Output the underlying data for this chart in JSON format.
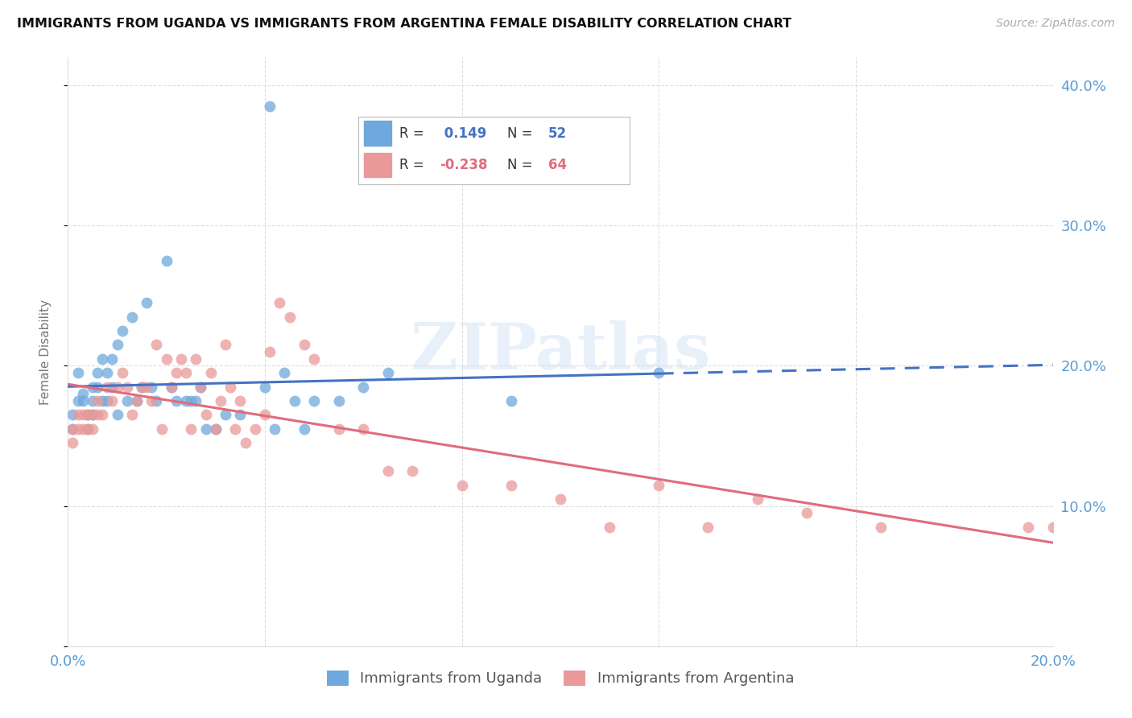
{
  "title": "IMMIGRANTS FROM UGANDA VS IMMIGRANTS FROM ARGENTINA FEMALE DISABILITY CORRELATION CHART",
  "source": "Source: ZipAtlas.com",
  "ylabel_label": "Female Disability",
  "xlim": [
    0.0,
    0.2
  ],
  "ylim": [
    0.0,
    0.42
  ],
  "uganda_color": "#6fa8dc",
  "argentina_color": "#ea9999",
  "uganda_line_color": "#4472c4",
  "argentina_line_color": "#e06c7e",
  "R_uganda": 0.149,
  "N_uganda": 52,
  "R_argentina": -0.238,
  "N_argentina": 64,
  "uganda_x": [
    0.001,
    0.001,
    0.002,
    0.002,
    0.003,
    0.003,
    0.004,
    0.004,
    0.005,
    0.005,
    0.005,
    0.006,
    0.006,
    0.007,
    0.007,
    0.008,
    0.008,
    0.009,
    0.009,
    0.01,
    0.01,
    0.011,
    0.012,
    0.013,
    0.014,
    0.015,
    0.016,
    0.017,
    0.018,
    0.02,
    0.021,
    0.022,
    0.024,
    0.025,
    0.026,
    0.027,
    0.028,
    0.03,
    0.032,
    0.035,
    0.04,
    0.041,
    0.042,
    0.044,
    0.046,
    0.048,
    0.05,
    0.055,
    0.06,
    0.065,
    0.09,
    0.12
  ],
  "uganda_y": [
    0.165,
    0.155,
    0.195,
    0.175,
    0.18,
    0.175,
    0.165,
    0.155,
    0.185,
    0.175,
    0.165,
    0.195,
    0.185,
    0.205,
    0.175,
    0.195,
    0.175,
    0.205,
    0.185,
    0.215,
    0.165,
    0.225,
    0.175,
    0.235,
    0.175,
    0.185,
    0.245,
    0.185,
    0.175,
    0.275,
    0.185,
    0.175,
    0.175,
    0.175,
    0.175,
    0.185,
    0.155,
    0.155,
    0.165,
    0.165,
    0.185,
    0.385,
    0.155,
    0.195,
    0.175,
    0.155,
    0.175,
    0.175,
    0.185,
    0.195,
    0.175,
    0.195
  ],
  "argentina_x": [
    0.001,
    0.001,
    0.002,
    0.002,
    0.003,
    0.003,
    0.004,
    0.004,
    0.005,
    0.005,
    0.006,
    0.006,
    0.007,
    0.008,
    0.009,
    0.01,
    0.011,
    0.012,
    0.013,
    0.014,
    0.015,
    0.016,
    0.017,
    0.018,
    0.019,
    0.02,
    0.021,
    0.022,
    0.023,
    0.024,
    0.025,
    0.026,
    0.027,
    0.028,
    0.029,
    0.03,
    0.031,
    0.032,
    0.033,
    0.034,
    0.035,
    0.036,
    0.038,
    0.04,
    0.041,
    0.043,
    0.045,
    0.048,
    0.05,
    0.055,
    0.06,
    0.065,
    0.07,
    0.08,
    0.09,
    0.1,
    0.11,
    0.12,
    0.13,
    0.14,
    0.15,
    0.165,
    0.195,
    0.2
  ],
  "argentina_y": [
    0.155,
    0.145,
    0.165,
    0.155,
    0.165,
    0.155,
    0.165,
    0.155,
    0.165,
    0.155,
    0.175,
    0.165,
    0.165,
    0.185,
    0.175,
    0.185,
    0.195,
    0.185,
    0.165,
    0.175,
    0.185,
    0.185,
    0.175,
    0.215,
    0.155,
    0.205,
    0.185,
    0.195,
    0.205,
    0.195,
    0.155,
    0.205,
    0.185,
    0.165,
    0.195,
    0.155,
    0.175,
    0.215,
    0.185,
    0.155,
    0.175,
    0.145,
    0.155,
    0.165,
    0.21,
    0.245,
    0.235,
    0.215,
    0.205,
    0.155,
    0.155,
    0.125,
    0.125,
    0.115,
    0.115,
    0.105,
    0.085,
    0.115,
    0.085,
    0.105,
    0.095,
    0.085,
    0.085,
    0.085
  ],
  "watermark": "ZIPatlas",
  "legend_r_color": "#4472c4",
  "legend_r2_color": "#e06c7e",
  "grid_color": "#dddddd",
  "tick_color": "#5b9bd5"
}
